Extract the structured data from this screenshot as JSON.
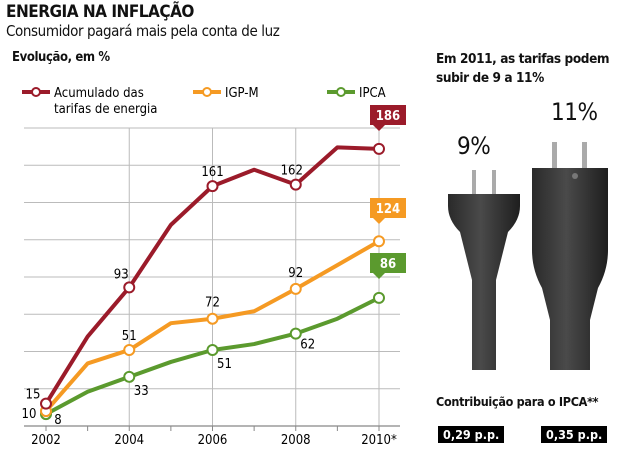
{
  "header": {
    "title": "ENERGIA NA INFLAÇÃO",
    "subtitle": "Consumidor pagará mais pela conta de luz"
  },
  "side": {
    "line1": "Em 2011, as tarifas podem",
    "line2": "subir de 9 a 11%",
    "plug_left_label": "9%",
    "plug_right_label": "11%",
    "contrib_label": "Contribuição para o IPCA**",
    "contrib_left": "0,29 p.p.",
    "contrib_right": "0,35 p.p."
  },
  "chart_data": {
    "type": "line",
    "title": "Evolução, em %",
    "x": [
      2002,
      2003,
      2004,
      2005,
      2006,
      2007,
      2008,
      2009,
      2010
    ],
    "xtick_labels": [
      "2002",
      "2004",
      "2006",
      "2008",
      "2010*"
    ],
    "ylim": [
      0,
      200
    ],
    "grid": true,
    "legend_placement": "top",
    "series": [
      {
        "name": "Acumulado das tarifas de energia",
        "name_lines": [
          "Acumulado das",
          "tarifas de energia"
        ],
        "color": "#9b1b2a",
        "values": [
          15,
          60,
          93,
          135,
          161,
          172,
          162,
          187,
          186
        ],
        "labels": {
          "0": "15",
          "2": "93",
          "4": "161",
          "6": "162"
        },
        "end_label": "186"
      },
      {
        "name": "IGP-M",
        "color": "#f59a23",
        "values": [
          10,
          42,
          51,
          69,
          72,
          77,
          92,
          108,
          124
        ],
        "labels": {
          "0": "10",
          "2": "51",
          "4": "72",
          "6": "92"
        },
        "end_label": "124"
      },
      {
        "name": "IPCA",
        "color": "#5b9a2e",
        "values": [
          8,
          23,
          33,
          43,
          51,
          55,
          62,
          72,
          86
        ],
        "labels": {
          "0": "8",
          "2": "33",
          "4": "51",
          "6": "62"
        },
        "end_label": "86"
      }
    ]
  }
}
